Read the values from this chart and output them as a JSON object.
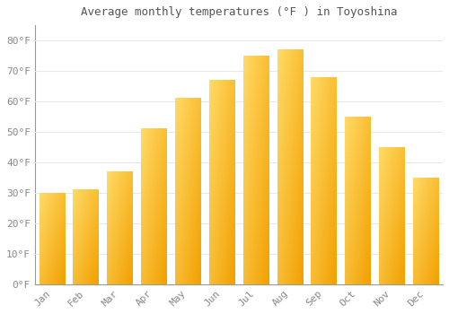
{
  "title": "Average monthly temperatures (°F ) in Toyoshina",
  "months": [
    "Jan",
    "Feb",
    "Mar",
    "Apr",
    "May",
    "Jun",
    "Jul",
    "Aug",
    "Sep",
    "Oct",
    "Nov",
    "Dec"
  ],
  "values": [
    30,
    31,
    37,
    51,
    61,
    67,
    75,
    77,
    68,
    55,
    45,
    35
  ],
  "bar_color_bottom": "#F5A800",
  "bar_color_top": "#FFD966",
  "bar_color_left": "#FFD45E",
  "bar_color_right": "#F5A000",
  "background_color": "#FFFFFF",
  "grid_color": "#E8E8E8",
  "text_color": "#888888",
  "title_color": "#555555",
  "ylim": [
    0,
    85
  ],
  "yticks": [
    0,
    10,
    20,
    30,
    40,
    50,
    60,
    70,
    80
  ],
  "ytick_labels": [
    "0°F",
    "10°F",
    "20°F",
    "30°F",
    "40°F",
    "50°F",
    "60°F",
    "70°F",
    "80°F"
  ],
  "bar_width": 0.75
}
